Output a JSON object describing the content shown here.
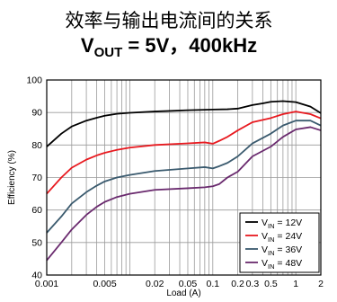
{
  "chart_data": {
    "type": "line",
    "title": "效率与输出电流间的关系",
    "subtitle": "VOUT = 5V，400kHz",
    "subtitle_parts": {
      "main": "V",
      "sub": "OUT",
      "rest": " = 5V，400kHz"
    },
    "xlabel": "Load (A)",
    "ylabel": "Efficiency (%)",
    "xscale": "log",
    "xlim": [
      0.001,
      2
    ],
    "ylim": [
      40,
      100
    ],
    "x_tick_labels": [
      {
        "v": 0.001,
        "t": "0.001"
      },
      {
        "v": 0.005,
        "t": "0.005"
      },
      {
        "v": 0.02,
        "t": "0.02"
      },
      {
        "v": 0.05,
        "t": "0.05"
      },
      {
        "v": 0.1,
        "t": "0.1"
      },
      {
        "v": 0.2,
        "t": "0.2"
      },
      {
        "v": 0.3,
        "t": "0.3"
      },
      {
        "v": 0.5,
        "t": "0.5"
      },
      {
        "v": 1,
        "t": "1"
      },
      {
        "v": 2,
        "t": "2"
      }
    ],
    "y_ticks": [
      40,
      50,
      60,
      70,
      80,
      90,
      100
    ],
    "grid": true,
    "legend": "bottom-right",
    "series": [
      {
        "name": "VIN = 12V",
        "label_parts": {
          "main": "V",
          "sub": "IN",
          "rest": " = 12V"
        },
        "color": "#000000",
        "points": [
          [
            0.001,
            79.5
          ],
          [
            0.0015,
            83.5
          ],
          [
            0.002,
            85.7
          ],
          [
            0.003,
            87.5
          ],
          [
            0.004,
            88.4
          ],
          [
            0.005,
            89.0
          ],
          [
            0.007,
            89.6
          ],
          [
            0.01,
            89.9
          ],
          [
            0.02,
            90.3
          ],
          [
            0.05,
            90.7
          ],
          [
            0.1,
            90.9
          ],
          [
            0.15,
            91.0
          ],
          [
            0.2,
            91.2
          ],
          [
            0.3,
            92.3
          ],
          [
            0.4,
            92.8
          ],
          [
            0.5,
            93.3
          ],
          [
            0.7,
            93.5
          ],
          [
            1.0,
            93.2
          ],
          [
            1.5,
            91.8
          ],
          [
            2.0,
            89.8
          ]
        ]
      },
      {
        "name": "VIN = 24V",
        "label_parts": {
          "main": "V",
          "sub": "IN",
          "rest": " = 24V"
        },
        "color": "#e8191f",
        "points": [
          [
            0.001,
            65.0
          ],
          [
            0.0015,
            70.0
          ],
          [
            0.002,
            73.0
          ],
          [
            0.003,
            75.5
          ],
          [
            0.004,
            76.8
          ],
          [
            0.005,
            77.6
          ],
          [
            0.007,
            78.5
          ],
          [
            0.01,
            79.2
          ],
          [
            0.02,
            80.0
          ],
          [
            0.05,
            80.5
          ],
          [
            0.08,
            80.8
          ],
          [
            0.1,
            80.4
          ],
          [
            0.12,
            81.3
          ],
          [
            0.15,
            82.5
          ],
          [
            0.2,
            84.5
          ],
          [
            0.3,
            87.0
          ],
          [
            0.5,
            88.3
          ],
          [
            0.7,
            89.5
          ],
          [
            1.0,
            90.3
          ],
          [
            1.5,
            89.5
          ],
          [
            2.0,
            88.2
          ]
        ]
      },
      {
        "name": "VIN = 36V",
        "label_parts": {
          "main": "V",
          "sub": "IN",
          "rest": " = 36V"
        },
        "color": "#3a5a6e",
        "points": [
          [
            0.001,
            53.0
          ],
          [
            0.0015,
            58.0
          ],
          [
            0.002,
            62.0
          ],
          [
            0.003,
            65.5
          ],
          [
            0.004,
            67.5
          ],
          [
            0.005,
            68.8
          ],
          [
            0.007,
            70.0
          ],
          [
            0.01,
            70.8
          ],
          [
            0.02,
            72.0
          ],
          [
            0.05,
            72.8
          ],
          [
            0.08,
            73.2
          ],
          [
            0.1,
            72.8
          ],
          [
            0.12,
            73.5
          ],
          [
            0.15,
            74.5
          ],
          [
            0.2,
            76.5
          ],
          [
            0.3,
            80.5
          ],
          [
            0.5,
            83.5
          ],
          [
            0.7,
            86.0
          ],
          [
            1.0,
            87.5
          ],
          [
            1.5,
            87.5
          ],
          [
            2.0,
            86.0
          ]
        ]
      },
      {
        "name": "VIN = 48V",
        "label_parts": {
          "main": "V",
          "sub": "IN",
          "rest": " = 48V"
        },
        "color": "#6a2a6e",
        "points": [
          [
            0.001,
            44.5
          ],
          [
            0.0015,
            50.0
          ],
          [
            0.002,
            54.0
          ],
          [
            0.003,
            58.5
          ],
          [
            0.004,
            61.0
          ],
          [
            0.005,
            62.5
          ],
          [
            0.007,
            64.0
          ],
          [
            0.01,
            65.0
          ],
          [
            0.02,
            66.2
          ],
          [
            0.05,
            66.7
          ],
          [
            0.08,
            67.0
          ],
          [
            0.1,
            67.3
          ],
          [
            0.12,
            68.0
          ],
          [
            0.15,
            70.0
          ],
          [
            0.2,
            71.8
          ],
          [
            0.3,
            76.5
          ],
          [
            0.5,
            79.5
          ],
          [
            0.7,
            82.5
          ],
          [
            1.0,
            84.8
          ],
          [
            1.5,
            85.5
          ],
          [
            2.0,
            84.5
          ]
        ]
      }
    ]
  }
}
